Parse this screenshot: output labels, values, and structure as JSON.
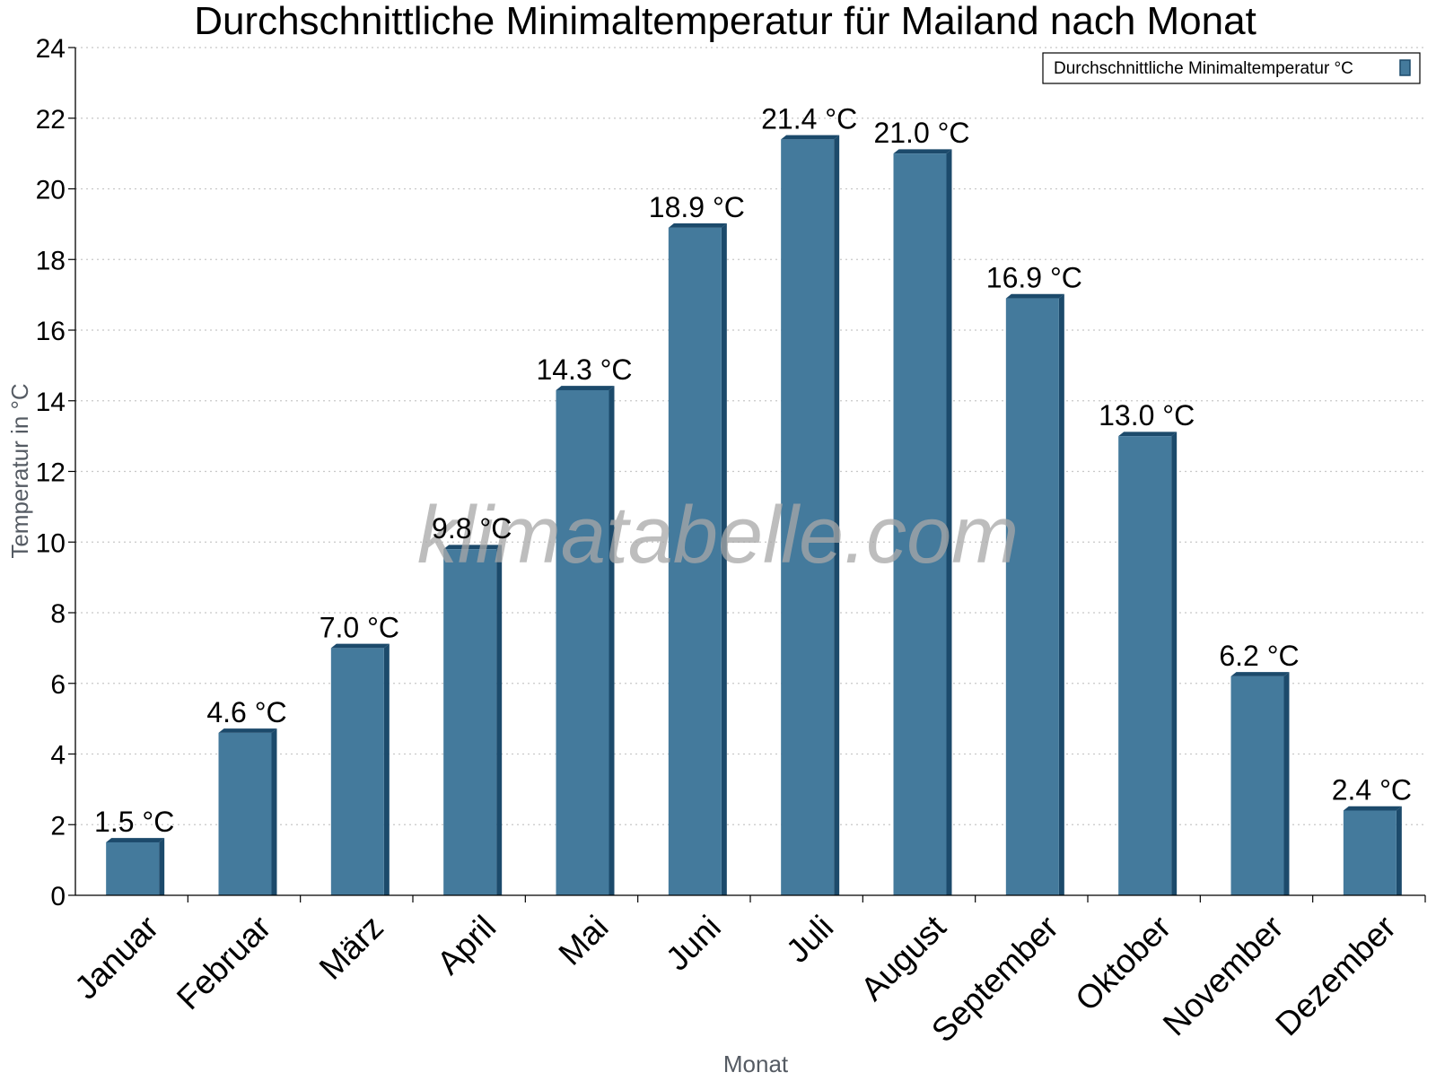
{
  "chart_data": {
    "type": "bar",
    "title": "Durchschnittliche Minimaltemperatur für Mailand nach Monat",
    "xlabel": "Monat",
    "ylabel": "Temperatur in °C",
    "ylim": [
      0,
      24
    ],
    "yticks": [
      "0",
      "2",
      "4",
      "6",
      "8",
      "10",
      "12",
      "14",
      "16",
      "18",
      "20",
      "22",
      "24"
    ],
    "grid": true,
    "legend_position": "top-right",
    "categories": [
      "Januar",
      "Februar",
      "März",
      "April",
      "Mai",
      "Juni",
      "Juli",
      "August",
      "September",
      "Oktober",
      "November",
      "Dezember"
    ],
    "series": [
      {
        "name": "Durchschnittliche Minimaltemperatur °C",
        "values": [
          1.5,
          4.6,
          7.0,
          9.8,
          14.3,
          18.9,
          21.4,
          21.0,
          16.9,
          13.0,
          6.2,
          2.4
        ],
        "labels": [
          "1.5 °C",
          "4.6 °C",
          "7.0 °C",
          "9.8 °C",
          "14.3 °C",
          "18.9 °C",
          "21.4 °C",
          "21.0 °C",
          "16.9 °C",
          "13.0 °C",
          "6.2 °C",
          "2.4 °C"
        ],
        "color": "#447a9c",
        "edge_color": "#1c4a6b"
      }
    ],
    "watermark": "klimatabelle.com"
  }
}
